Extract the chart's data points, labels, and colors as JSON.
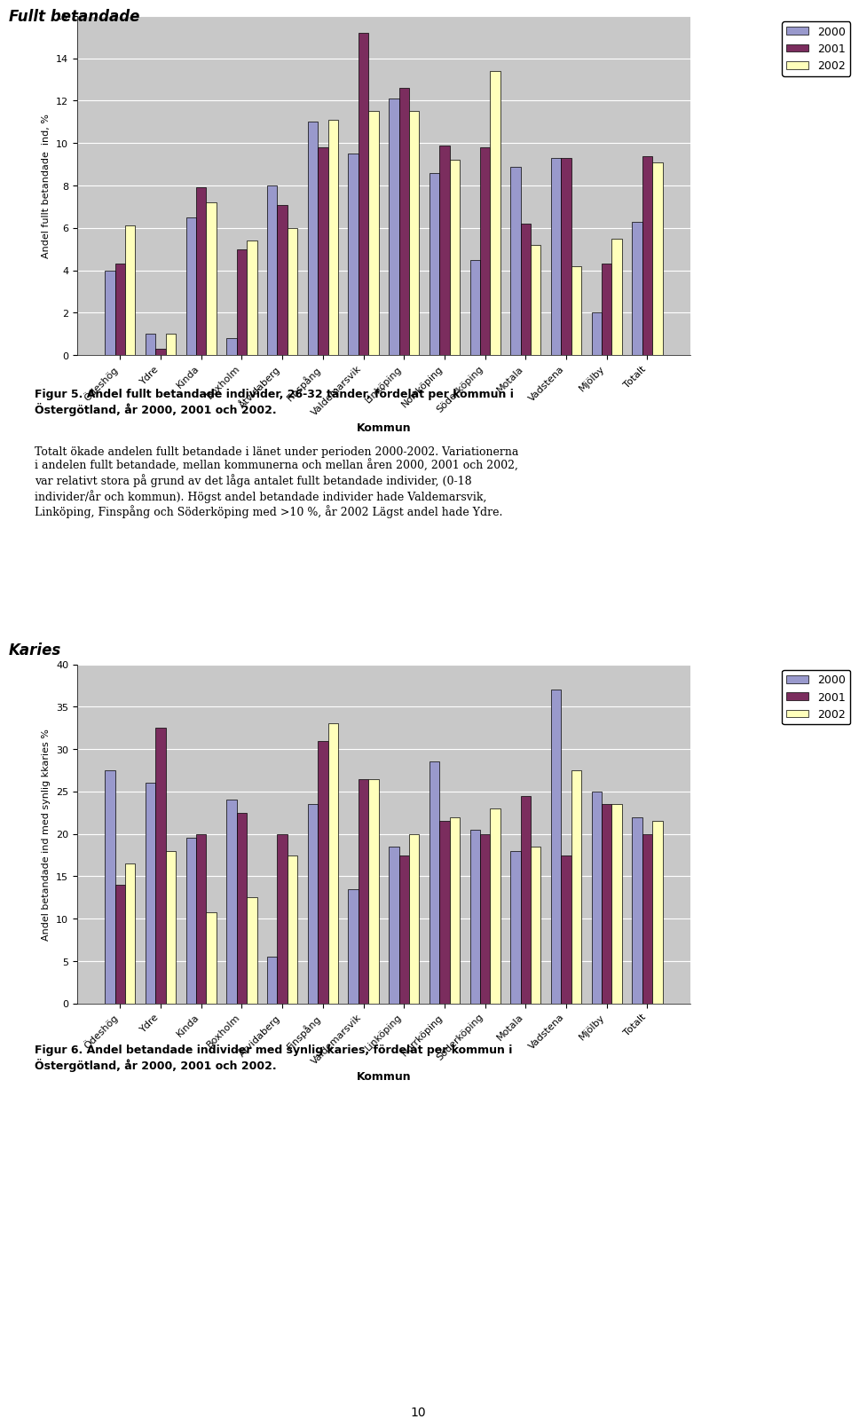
{
  "chart1": {
    "title": "Fullt betandade",
    "ylabel": "Andel fullt betandade  ind, %",
    "xlabel": "Kommun",
    "ylim": [
      0,
      16
    ],
    "yticks": [
      0,
      2,
      4,
      6,
      8,
      10,
      12,
      14,
      16
    ],
    "categories": [
      "Ödeshög",
      "Ydre",
      "Kinda",
      "Boxholm",
      "Åtvidaberg",
      "Finspång",
      "Valdemarsvik",
      "Linköping",
      "Norrköping",
      "Söderköping",
      "Motala",
      "Vadstena",
      "Mjölby",
      "Totalt"
    ],
    "data_2000": [
      4.0,
      1.0,
      6.5,
      0.8,
      8.0,
      11.0,
      9.5,
      12.1,
      8.6,
      4.5,
      8.9,
      9.3,
      2.0,
      6.3
    ],
    "data_2001": [
      4.3,
      0.3,
      7.9,
      5.0,
      7.1,
      9.8,
      15.2,
      12.6,
      9.9,
      9.8,
      6.2,
      9.3,
      4.3,
      9.4
    ],
    "data_2002": [
      6.1,
      1.0,
      7.2,
      5.4,
      6.0,
      11.1,
      11.5,
      11.5,
      9.2,
      13.4,
      5.2,
      4.2,
      5.5,
      9.1
    ]
  },
  "chart2": {
    "title": "Karies",
    "ylabel": "Andel betandade ind med synlig kkaries %",
    "xlabel": "Kommun",
    "ylim": [
      0,
      40
    ],
    "yticks": [
      0,
      5,
      10,
      15,
      20,
      25,
      30,
      35,
      40
    ],
    "categories": [
      "Ödeshög",
      "Ydre",
      "Kinda",
      "Boxholm",
      "Åtvidaberg",
      "Finspång",
      "Valdemarsvik",
      "Linköping",
      "Norrköping",
      "Söderköping",
      "Motala",
      "Vadstena",
      "Mjölby",
      "Totalt"
    ],
    "data_2000": [
      27.5,
      26.0,
      19.5,
      24.0,
      5.5,
      23.5,
      13.5,
      18.5,
      28.5,
      20.5,
      18.0,
      37.0,
      25.0,
      22.0
    ],
    "data_2001": [
      14.0,
      32.5,
      20.0,
      22.5,
      20.0,
      31.0,
      26.5,
      17.5,
      21.5,
      20.0,
      24.5,
      17.5,
      23.5,
      20.0
    ],
    "data_2002": [
      16.5,
      18.0,
      10.8,
      12.5,
      17.5,
      33.0,
      26.5,
      20.0,
      22.0,
      23.0,
      18.5,
      27.5,
      23.5,
      21.5
    ]
  },
  "color_2000": "#9999CC",
  "color_2001": "#7B2D5E",
  "color_2002": "#FFFFBB",
  "legend_labels": [
    "2000",
    "2001",
    "2002"
  ],
  "fig5_caption": "Figur 5. Andel fullt betandade individer, 26-32 tänder, fördelat per kommun i\nÖstergötland, år 2000, 2001 och 2002.",
  "fig5_text": "Totalt ökade andelen fullt betandade i länet under perioden 2000-2002. Variationerna\ni andelen fullt betandade, mellan kommunerna och mellan åren 2000, 2001 och 2002,\nvar relativt stora på grund av det låga antalet fullt betandade individer, (0-18\nindivider/år och kommun). Högst andel betandade individer hade Valdemarsvik,\nLinköping, Finspång och Söderköping med >10 %, år 2002 Lägst andel hade Ydre.",
  "fig6_caption": "Figur 6. Andel betandade individer med synlig karies, fördelat per kommun i\nÖstergötland, år 2000, 2001 och 2002.",
  "page_number": "10"
}
